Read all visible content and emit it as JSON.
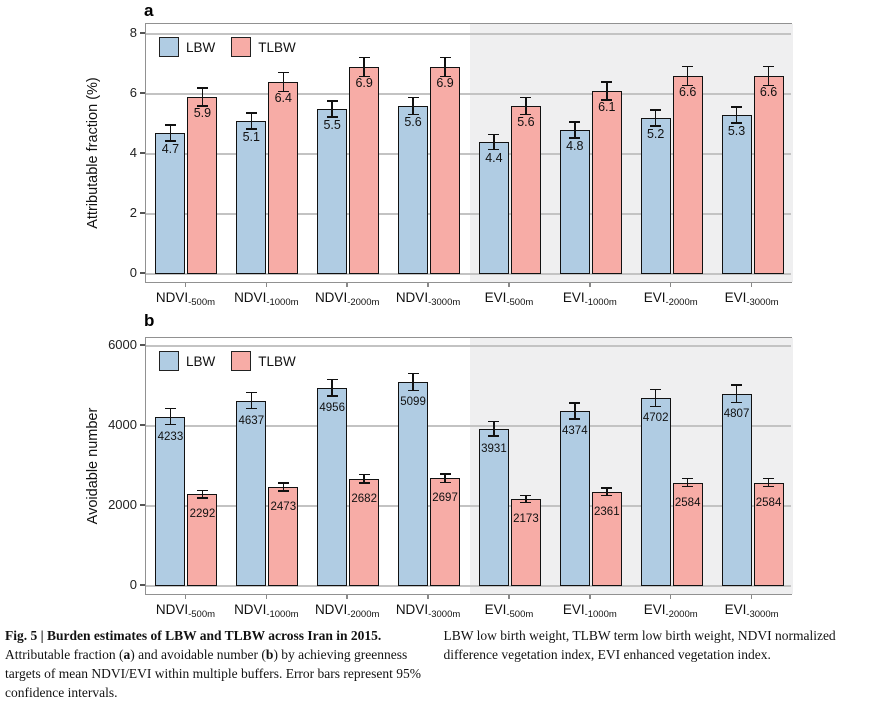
{
  "chart_data": [
    {
      "id": "a",
      "type": "bar",
      "panel_label": "a",
      "ylabel": "Attributable fraction (%)",
      "yticks": [
        0,
        2,
        4,
        6,
        8
      ],
      "ylim": [
        0,
        8
      ],
      "grid": true,
      "legend_position": "top-left-inside",
      "legend": [
        "LBW",
        "TLBW"
      ],
      "categories": [
        {
          "base": "NDVI",
          "sub": "-500m"
        },
        {
          "base": "NDVI",
          "sub": "-1000m"
        },
        {
          "base": "NDVI",
          "sub": "-2000m"
        },
        {
          "base": "NDVI",
          "sub": "-3000m"
        },
        {
          "base": "EVI",
          "sub": "-500m"
        },
        {
          "base": "EVI",
          "sub": "-1000m"
        },
        {
          "base": "EVI",
          "sub": "-2000m"
        },
        {
          "base": "EVI",
          "sub": "-3000m"
        }
      ],
      "shade_from": 4,
      "shade_color": "#efeff0",
      "series": [
        {
          "name": "LBW",
          "color": "#b0cce3",
          "values": [
            4.7,
            5.1,
            5.5,
            5.6,
            4.4,
            4.8,
            5.2,
            5.3
          ],
          "err": [
            0.26,
            0.26,
            0.27,
            0.28,
            0.25,
            0.26,
            0.26,
            0.27
          ]
        },
        {
          "name": "TLBW",
          "color": "#f7aca6",
          "values": [
            5.9,
            6.4,
            6.9,
            6.9,
            5.6,
            6.1,
            6.6,
            6.6
          ],
          "err": [
            0.3,
            0.31,
            0.32,
            0.32,
            0.29,
            0.3,
            0.31,
            0.31
          ]
        }
      ]
    },
    {
      "id": "b",
      "type": "bar",
      "panel_label": "b",
      "ylabel": "Avoidable number",
      "yticks": [
        0,
        2000,
        4000,
        6000
      ],
      "ylim": [
        0,
        6000
      ],
      "grid": true,
      "legend_position": "top-left-inside",
      "legend": [
        "LBW",
        "TLBW"
      ],
      "categories": [
        {
          "base": "NDVI",
          "sub": "-500m"
        },
        {
          "base": "NDVI",
          "sub": "-1000m"
        },
        {
          "base": "NDVI",
          "sub": "-2000m"
        },
        {
          "base": "NDVI",
          "sub": "-3000m"
        },
        {
          "base": "EVI",
          "sub": "-500m"
        },
        {
          "base": "EVI",
          "sub": "-1000m"
        },
        {
          "base": "EVI",
          "sub": "-2000m"
        },
        {
          "base": "EVI",
          "sub": "-3000m"
        }
      ],
      "shade_from": 4,
      "shade_color": "#efeff0",
      "series": [
        {
          "name": "LBW",
          "color": "#b0cce3",
          "values": [
            4233,
            4637,
            4956,
            5099,
            3931,
            4374,
            4702,
            4807
          ],
          "err": [
            200,
            200,
            210,
            215,
            185,
            200,
            210,
            215
          ]
        },
        {
          "name": "TLBW",
          "color": "#f7aca6",
          "values": [
            2292,
            2473,
            2682,
            2697,
            2173,
            2361,
            2584,
            2584
          ],
          "err": [
            95,
            100,
            105,
            105,
            90,
            95,
            100,
            100
          ]
        }
      ]
    }
  ],
  "caption": {
    "left_bold": "Fig. 5 | Burden estimates of LBW and TLBW across Iran in 2015.",
    "left_1": " Attributable fraction (",
    "left_a": "a",
    "left_2": ") and avoidable number (",
    "left_b": "b",
    "left_3": ") by achieving greenness targets of mean NDVI/EVI within multiple buffers. Error bars represent 95% confidence intervals.",
    "right": "LBW low birth weight, TLBW term low birth weight, NDVI normalized difference vegetation index, EVI enhanced vegetation index."
  }
}
